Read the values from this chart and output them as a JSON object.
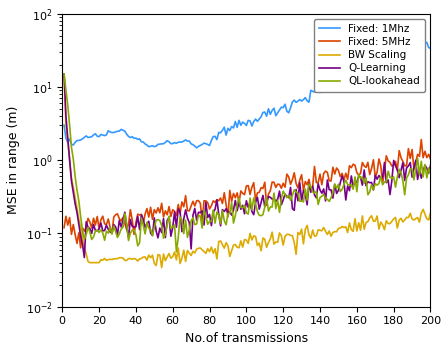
{
  "title": "",
  "xlabel": "No.of transmissions",
  "ylabel": "MSE in range (m)",
  "xlim": [
    0,
    200
  ],
  "ylim_log": [
    -2,
    2
  ],
  "legend_labels": [
    "Fixed: 1Mhz",
    "Fixed: 5MHz",
    "BW Scaling",
    "Q-Learning",
    "QL-lookahead"
  ],
  "colors": [
    "#3399FF",
    "#DD4400",
    "#DDAA00",
    "#770088",
    "#88AA00"
  ],
  "linewidth": 1.2,
  "n_points": 200,
  "figsize": [
    4.48,
    3.52
  ],
  "dpi": 100
}
